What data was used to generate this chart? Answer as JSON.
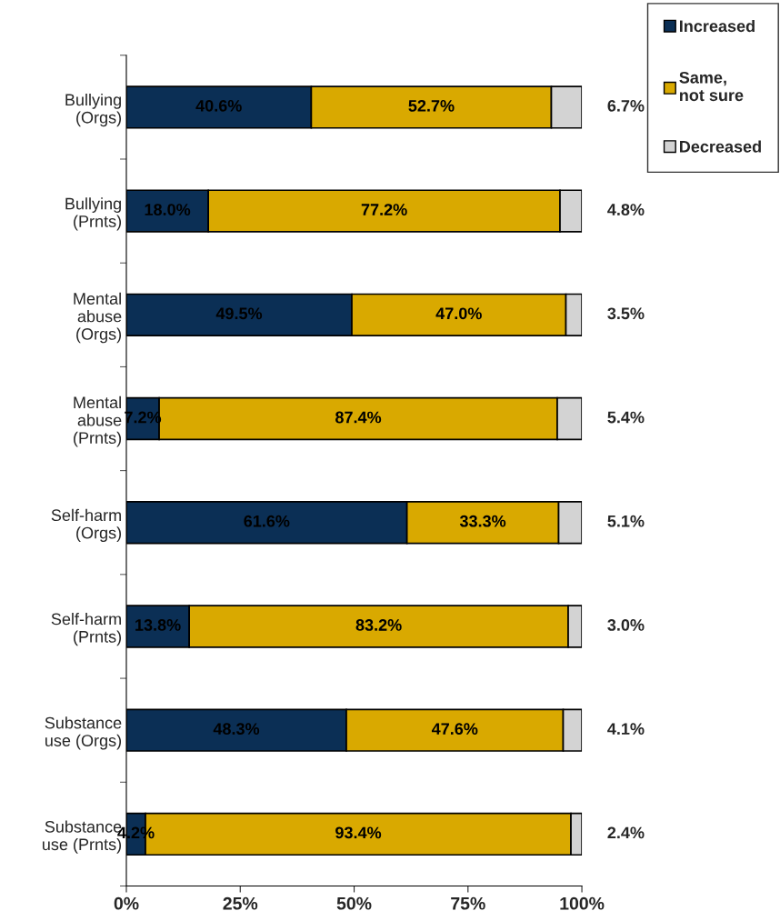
{
  "chart_data": {
    "type": "bar",
    "orientation": "horizontal",
    "stacked": true,
    "categories": [
      "Bullying\n(Orgs)",
      "Bullying\n(Prnts)",
      "Mental\nabuse\n(Orgs)",
      "Mental\nabuse\n(Prnts)",
      "Self-harm\n(Orgs)",
      "Self-harm\n(Prnts)",
      "Substance\nuse (Orgs)",
      "Substance\nuse (Prnts)"
    ],
    "series": [
      {
        "name": "Increased",
        "color": "#0b2f55",
        "values": [
          40.6,
          18.0,
          49.5,
          7.2,
          61.6,
          13.8,
          48.3,
          4.2
        ],
        "value_labels": [
          "40.6%",
          "18.0%",
          "49.5%",
          "7.2%",
          "61.6%",
          "13.8%",
          "48.3%",
          "4.2%"
        ]
      },
      {
        "name": "Same, not sure",
        "color": "#d9a900",
        "values": [
          52.7,
          77.2,
          47.0,
          87.4,
          33.3,
          83.2,
          47.6,
          93.4
        ],
        "value_labels": [
          "52.7%",
          "77.2%",
          "47.0%",
          "87.4%",
          "33.3%",
          "83.2%",
          "47.6%",
          "93.4%"
        ]
      },
      {
        "name": "Decreased",
        "color": "#d3d3d3",
        "values": [
          6.7,
          4.8,
          3.5,
          5.4,
          5.1,
          3.0,
          4.1,
          2.4
        ],
        "value_labels": [
          "6.7%",
          "4.8%",
          "3.5%",
          "5.4%",
          "5.1%",
          "3.0%",
          "4.1%",
          "2.4%"
        ]
      }
    ],
    "xlim": [
      0,
      100
    ],
    "xticks": [
      {
        "value": 0,
        "label": "0%"
      },
      {
        "value": 25,
        "label": "25%"
      },
      {
        "value": 50,
        "label": "50%"
      },
      {
        "value": 75,
        "label": "75%"
      },
      {
        "value": 100,
        "label": "100%"
      }
    ],
    "grid": false,
    "legend": "top right"
  }
}
